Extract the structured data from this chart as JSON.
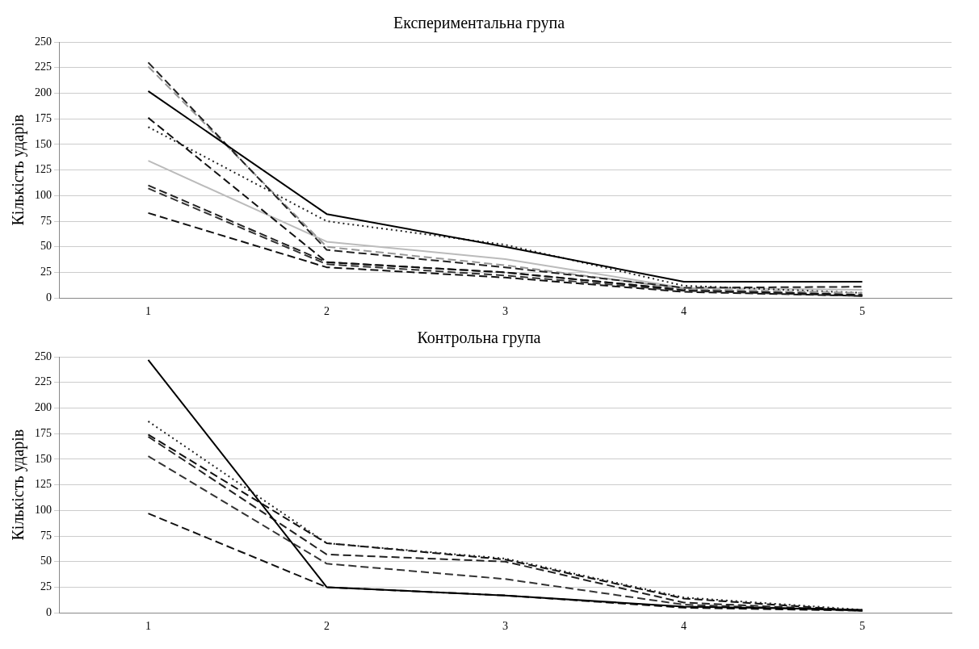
{
  "chart_data": [
    {
      "type": "line",
      "title": "Експериментальна група",
      "ylabel": "Кількість ударів",
      "categories": [
        "1",
        "2",
        "3",
        "4",
        "5"
      ],
      "ylim": [
        0,
        250
      ],
      "yticks": [
        0,
        25,
        50,
        75,
        100,
        125,
        150,
        175,
        200,
        225,
        250
      ],
      "grid": "y",
      "legend": false,
      "marker": "none",
      "series": [
        {
          "color": "#000000",
          "line_style": "solid",
          "values": [
            202,
            82,
            50,
            16,
            16
          ]
        },
        {
          "color": "#222222",
          "line_style": "dashed",
          "values": [
            230,
            47,
            30,
            10,
            11
          ]
        },
        {
          "color": "#999999",
          "line_style": "dashed",
          "values": [
            226,
            50,
            32,
            9,
            5
          ]
        },
        {
          "color": "#222222",
          "line_style": "dotted",
          "values": [
            167,
            75,
            52,
            12,
            5
          ]
        },
        {
          "color": "#111111",
          "line_style": "dashed",
          "values": [
            176,
            35,
            25,
            8,
            3
          ]
        },
        {
          "color": "#bbbbbb",
          "line_style": "solid",
          "values": [
            134,
            55,
            38,
            10,
            8
          ]
        },
        {
          "color": "#222222",
          "line_style": "dashed",
          "values": [
            110,
            35,
            25,
            8,
            3
          ]
        },
        {
          "color": "#333333",
          "line_style": "dashed",
          "values": [
            107,
            33,
            22,
            7,
            2
          ]
        },
        {
          "color": "#111111",
          "line_style": "dashed",
          "values": [
            83,
            30,
            20,
            6,
            2
          ]
        }
      ]
    },
    {
      "type": "line",
      "title": "Контрольна група",
      "ylabel": "Кількість ударів",
      "categories": [
        "1",
        "2",
        "3",
        "4",
        "5"
      ],
      "ylim": [
        0,
        250
      ],
      "yticks": [
        0,
        25,
        50,
        75,
        100,
        125,
        150,
        175,
        200,
        225,
        250
      ],
      "grid": "y",
      "legend": false,
      "marker": "none",
      "series": [
        {
          "color": "#000000",
          "line_style": "solid",
          "values": [
            247,
            25,
            17,
            6,
            3
          ]
        },
        {
          "color": "#222222",
          "line_style": "dotted",
          "values": [
            187,
            68,
            53,
            15,
            3
          ]
        },
        {
          "color": "#111111",
          "line_style": "dashed",
          "values": [
            174,
            68,
            52,
            14,
            2
          ]
        },
        {
          "color": "#222222",
          "line_style": "dashed",
          "values": [
            172,
            57,
            50,
            10,
            2
          ]
        },
        {
          "color": "#333333",
          "line_style": "dashed",
          "values": [
            153,
            48,
            33,
            8,
            2
          ]
        },
        {
          "color": "#111111",
          "line_style": "dashed",
          "values": [
            97,
            25,
            17,
            5,
            2
          ]
        }
      ]
    }
  ]
}
